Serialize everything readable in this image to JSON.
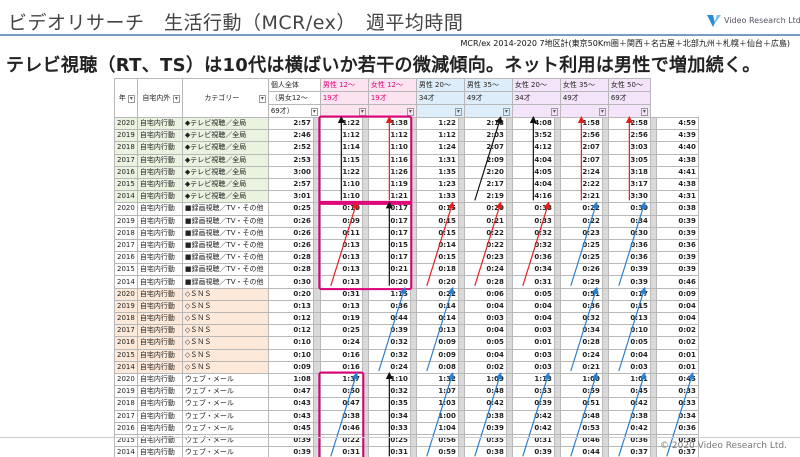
{
  "header": {
    "title": "ビデオリサーチ　生活行動（MCR/ex）　週平均時間",
    "logo_text": "Video Research Ltd.",
    "logo_icon": "vr-logo-icon",
    "note": "MCR/ex 2014-2020 7地区計(東京50Km圏＋関西＋名古屋＋北部九州＋札幌＋仙台＋広島)"
  },
  "headline": "テレビ視聴（RT、TS）は10代は横ばいか若干の微減傾向。ネット利用は男性で増加続く。",
  "footer": "© 2020 Video Research Ltd.",
  "colors": {
    "accent_line": "#7a9cc4",
    "pink_highlight": "#e0007a",
    "red_arrow": "#e02020",
    "blue_arrow": "#2a7fd0",
    "black_arrow": "#111111"
  },
  "columns": {
    "year": "年",
    "place": "自宅内外",
    "category": "カテゴリー",
    "c1a": "個人全体",
    "c1b": "（男女12～",
    "c1c": "69才）",
    "c2a": "男性 12～",
    "c2b": "19才",
    "c3a": "女性 12～",
    "c3b": "19才",
    "c4a": "男性 20～",
    "c4b": "34才",
    "c5a": "男性 35～",
    "c5b": "49才",
    "c6a": "女性 20～",
    "c6b": "34才",
    "c7a": "女性 35～",
    "c7b": "49才",
    "c8a": "女性 50～",
    "c8b": "69才"
  },
  "rows": [
    {
      "y": "2020",
      "p": "自宅内行動",
      "c": "◆テレビ視聴／全局",
      "v": [
        "2:57",
        "1:22",
        "1:38",
        "1:22",
        "2:18",
        "4:08",
        "1:58",
        "2:58",
        "4:59"
      ]
    },
    {
      "y": "2019",
      "p": "自宅内行動",
      "c": "◆テレビ視聴／全局",
      "v": [
        "2:46",
        "1:12",
        "1:12",
        "1:12",
        "2:03",
        "3:52",
        "2:56",
        "2:56",
        "4:39"
      ]
    },
    {
      "y": "2018",
      "p": "自宅内行動",
      "c": "◆テレビ視聴／全局",
      "v": [
        "2:52",
        "1:14",
        "1:10",
        "1:24",
        "2:07",
        "4:12",
        "2:07",
        "3:03",
        "4:40"
      ]
    },
    {
      "y": "2017",
      "p": "自宅内行動",
      "c": "◆テレビ視聴／全局",
      "v": [
        "2:53",
        "1:15",
        "1:16",
        "1:31",
        "2:09",
        "4:04",
        "2:07",
        "3:05",
        "4:38"
      ]
    },
    {
      "y": "2016",
      "p": "自宅内行動",
      "c": "◆テレビ視聴／全局",
      "v": [
        "3:00",
        "1:22",
        "1:26",
        "1:35",
        "2:20",
        "4:05",
        "2:24",
        "3:18",
        "4:41"
      ]
    },
    {
      "y": "2015",
      "p": "自宅内行動",
      "c": "◆テレビ視聴／全局",
      "v": [
        "2:57",
        "1:10",
        "1:19",
        "1:23",
        "2:17",
        "4:04",
        "2:22",
        "3:17",
        "4:38"
      ]
    },
    {
      "y": "2014",
      "p": "自宅内行動",
      "c": "◆テレビ視聴／全局",
      "v": [
        "3:01",
        "1:10",
        "1:21",
        "1:33",
        "2:19",
        "4:16",
        "2:21",
        "3:30",
        "4:31"
      ]
    },
    {
      "y": "2020",
      "p": "自宅内行動",
      "c": "■録画視聴／TV・その他",
      "v": [
        "0:25",
        "0:10",
        "0:17",
        "0:15",
        "0:20",
        "0:38",
        "0:22",
        "0:30",
        "0:38"
      ]
    },
    {
      "y": "2019",
      "p": "自宅内行動",
      "c": "■録画視聴／TV・その他",
      "v": [
        "0:26",
        "0:09",
        "0:17",
        "0:15",
        "0:21",
        "0:33",
        "0:22",
        "0:34",
        "0:39"
      ]
    },
    {
      "y": "2018",
      "p": "自宅内行動",
      "c": "■録画視聴／TV・その他",
      "v": [
        "0:26",
        "0:11",
        "0:17",
        "0:15",
        "0:22",
        "0:32",
        "0:23",
        "0:30",
        "0:39"
      ]
    },
    {
      "y": "2017",
      "p": "自宅内行動",
      "c": "■録画視聴／TV・その他",
      "v": [
        "0:26",
        "0:13",
        "0:15",
        "0:14",
        "0:22",
        "0:32",
        "0:25",
        "0:36",
        "0:36"
      ]
    },
    {
      "y": "2016",
      "p": "自宅内行動",
      "c": "■録画視聴／TV・その他",
      "v": [
        "0:28",
        "0:13",
        "0:17",
        "0:15",
        "0:23",
        "0:36",
        "0:25",
        "0:36",
        "0:39"
      ]
    },
    {
      "y": "2015",
      "p": "自宅内行動",
      "c": "■録画視聴／TV・その他",
      "v": [
        "0:28",
        "0:13",
        "0:21",
        "0:18",
        "0:24",
        "0:34",
        "0:26",
        "0:39",
        "0:39"
      ]
    },
    {
      "y": "2014",
      "p": "自宅内行動",
      "c": "■録画視聴／TV・その他",
      "v": [
        "0:30",
        "0:13",
        "0:20",
        "0:20",
        "0:28",
        "0:31",
        "0:29",
        "0:39",
        "0:46"
      ]
    },
    {
      "y": "2020",
      "p": "自宅内行動",
      "c": "◇ＳＮＳ",
      "v": [
        "0:20",
        "0:31",
        "1:15",
        "0:22",
        "0:06",
        "0:05",
        "0:51",
        "0:17",
        "0:09"
      ]
    },
    {
      "y": "2019",
      "p": "自宅内行動",
      "c": "◇ＳＮＳ",
      "v": [
        "0:13",
        "0:13",
        "0:36",
        "0:14",
        "0:04",
        "0:04",
        "0:36",
        "0:15",
        "0:04"
      ]
    },
    {
      "y": "2018",
      "p": "自宅内行動",
      "c": "◇ＳＮＳ",
      "v": [
        "0:12",
        "0:19",
        "0:44",
        "0:14",
        "0:03",
        "0:04",
        "0:32",
        "0:13",
        "0:04"
      ]
    },
    {
      "y": "2017",
      "p": "自宅内行動",
      "c": "◇ＳＮＳ",
      "v": [
        "0:12",
        "0:25",
        "0:39",
        "0:13",
        "0:04",
        "0:03",
        "0:34",
        "0:10",
        "0:02"
      ]
    },
    {
      "y": "2016",
      "p": "自宅内行動",
      "c": "◇ＳＮＳ",
      "v": [
        "0:10",
        "0:24",
        "0:32",
        "0:09",
        "0:05",
        "0:01",
        "0:28",
        "0:05",
        "0:02"
      ]
    },
    {
      "y": "2015",
      "p": "自宅内行動",
      "c": "◇ＳＮＳ",
      "v": [
        "0:10",
        "0:16",
        "0:32",
        "0:09",
        "0:04",
        "0:03",
        "0:24",
        "0:04",
        "0:01"
      ]
    },
    {
      "y": "2014",
      "p": "自宅内行動",
      "c": "◇ＳＮＳ",
      "v": [
        "0:09",
        "0:16",
        "0:24",
        "0:08",
        "0:02",
        "0:03",
        "0:21",
        "0:03",
        "0:01"
      ]
    },
    {
      "y": "2020",
      "p": "自宅内行動",
      "c": "ウェブ・メール",
      "v": [
        "1:08",
        "1:37",
        "1:10",
        "1:32",
        "1:09",
        "1:13",
        "1:00",
        "1:01",
        "0:45"
      ]
    },
    {
      "y": "2019",
      "p": "自宅内行動",
      "c": "ウェブ・メール",
      "v": [
        "0:47",
        "0:50",
        "0:32",
        "1:07",
        "0:48",
        "0:53",
        "0:59",
        "0:45",
        "0:33"
      ]
    },
    {
      "y": "2018",
      "p": "自宅内行動",
      "c": "ウェブ・メール",
      "v": [
        "0:43",
        "0:47",
        "0:35",
        "1:03",
        "0:42",
        "0:39",
        "0:51",
        "0:42",
        "0:33"
      ]
    },
    {
      "y": "2017",
      "p": "自宅内行動",
      "c": "ウェブ・メール",
      "v": [
        "0:43",
        "0:38",
        "0:34",
        "1:00",
        "0:38",
        "0:42",
        "0:48",
        "0:38",
        "0:34"
      ]
    },
    {
      "y": "2016",
      "p": "自宅内行動",
      "c": "ウェブ・メール",
      "v": [
        "0:45",
        "0:46",
        "0:33",
        "1:04",
        "0:39",
        "0:42",
        "0:53",
        "0:42",
        "0:36"
      ]
    },
    {
      "y": "2015",
      "p": "自宅内行動",
      "c": "ウェブ・メール",
      "v": [
        "0:39",
        "0:22",
        "0:25",
        "0:56",
        "0:35",
        "0:31",
        "0:46",
        "0:36",
        "0:38"
      ]
    },
    {
      "y": "2014",
      "p": "自宅内行動",
      "c": "ウェブ・メール",
      "v": [
        "0:39",
        "0:31",
        "0:31",
        "0:59",
        "0:38",
        "0:39",
        "0:44",
        "0:37",
        "0:37"
      ]
    }
  ]
}
